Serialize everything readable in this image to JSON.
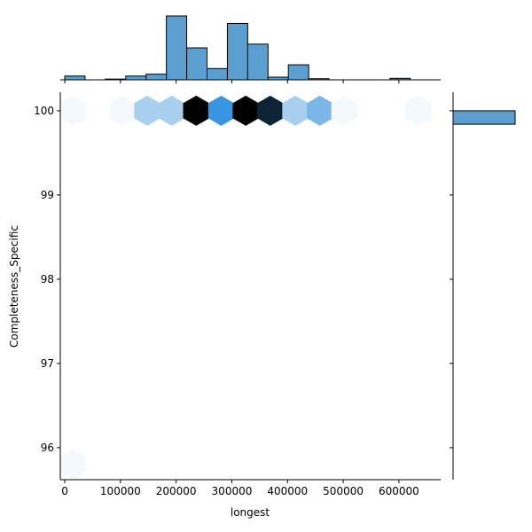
{
  "chart_data": {
    "type": "hexbin-joint",
    "xlabel": "longest",
    "ylabel": "Completeness_Specific",
    "xlim": [
      -8000,
      675000
    ],
    "ylim": [
      95.62,
      100.22
    ],
    "xticks": [
      0,
      100000,
      200000,
      300000,
      400000,
      500000,
      600000
    ],
    "xtick_labels": [
      "0",
      "100000",
      "200000",
      "300000",
      "400000",
      "500000",
      "600000"
    ],
    "yticks": [
      96,
      97,
      98,
      99,
      100
    ],
    "ytick_labels": [
      "96",
      "97",
      "98",
      "99",
      "100"
    ],
    "grid": false,
    "hexbins": [
      {
        "x": 15000,
        "y": 100,
        "count": 1
      },
      {
        "x": 104000,
        "y": 100,
        "count": 1
      },
      {
        "x": 148000,
        "y": 100,
        "count": 2
      },
      {
        "x": 192000,
        "y": 100,
        "count": 2
      },
      {
        "x": 236000,
        "y": 100,
        "count": 12
      },
      {
        "x": 281000,
        "y": 100,
        "count": 5
      },
      {
        "x": 325000,
        "y": 100,
        "count": 11
      },
      {
        "x": 369000,
        "y": 100,
        "count": 7
      },
      {
        "x": 414000,
        "y": 100,
        "count": 2
      },
      {
        "x": 458000,
        "y": 100,
        "count": 3
      },
      {
        "x": 502000,
        "y": 100,
        "count": 1
      },
      {
        "x": 635000,
        "y": 100,
        "count": 1
      },
      {
        "x": 15000,
        "y": 95.8,
        "count": 1
      }
    ],
    "marginal_x": {
      "bin_edges": [
        0,
        36500,
        73000,
        109500,
        146000,
        182500,
        219000,
        255500,
        292000,
        328500,
        365000,
        401500,
        438000,
        474500,
        511000,
        547500,
        584000,
        620500,
        657000
      ],
      "counts": [
        1,
        0,
        0.2,
        1,
        1.5,
        17,
        8.5,
        3,
        15,
        9.5,
        0.7,
        4,
        0.3,
        0,
        0,
        0,
        0.4,
        0
      ]
    },
    "marginal_y": {
      "bins": [
        {
          "y0": 99.84,
          "y1": 100.0,
          "count": 100
        },
        {
          "y0": 95.62,
          "y1": 95.9,
          "count": 0
        }
      ]
    },
    "colors": {
      "bar": "#5a9fcf",
      "bar_edge": "#000000",
      "hex_colormap": [
        "#f4f9fe",
        "#d7e8f7",
        "#a9cfef",
        "#7ab7e7",
        "#3a95e0",
        "#0e2335",
        "#000000"
      ]
    }
  }
}
